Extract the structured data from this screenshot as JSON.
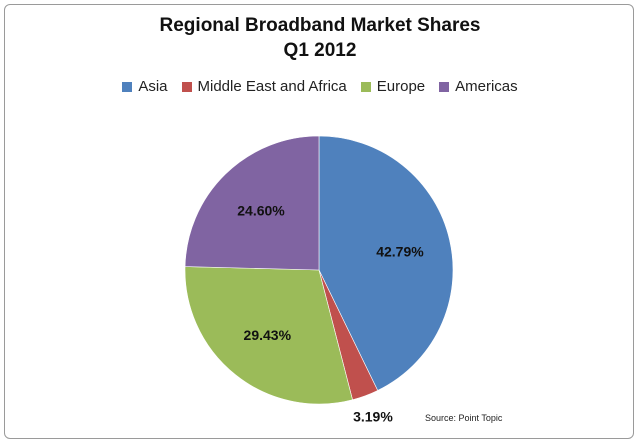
{
  "chart_data": {
    "type": "pie",
    "title": "Regional Broadband Market Shares",
    "subtitle": "Q1 2012",
    "slices": [
      {
        "name": "Asia",
        "value": 42.79,
        "label": "42.79%",
        "color": "#4F81BD"
      },
      {
        "name": "Middle East and Africa",
        "value": 3.19,
        "label": "3.19%",
        "color": "#C0504D"
      },
      {
        "name": "Europe",
        "value": 29.43,
        "label": "29.43%",
        "color": "#9BBB59"
      },
      {
        "name": "Americas",
        "value": 24.6,
        "label": "24.60%",
        "color": "#8064A2"
      }
    ],
    "legend_position": "top",
    "start_angle": "12 o'clock",
    "direction": "clockwise"
  },
  "source": "Source: Point Topic"
}
